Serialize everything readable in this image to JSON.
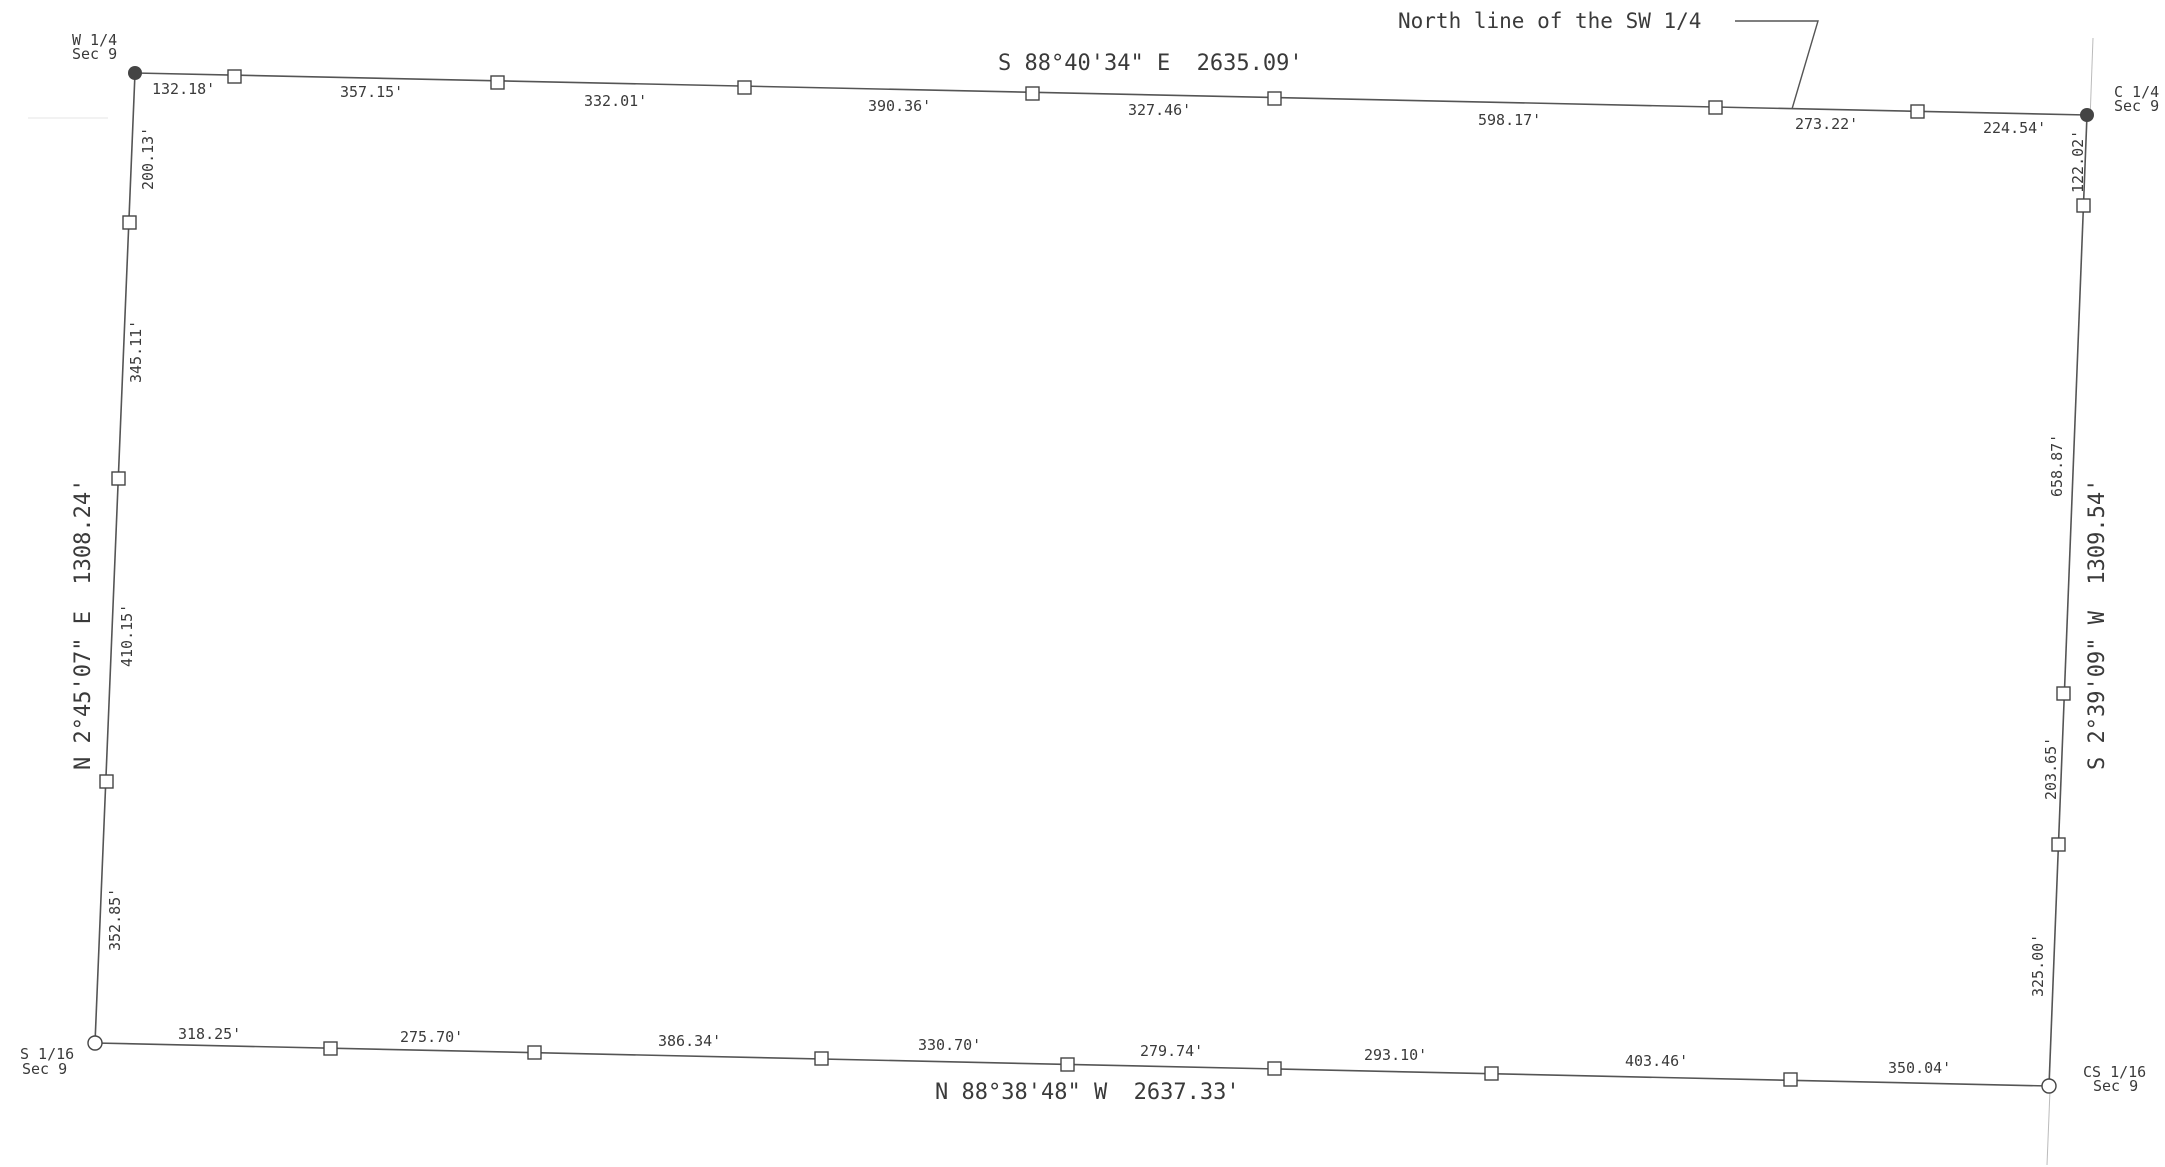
{
  "corners": {
    "nw": {
      "line1": "W 1/4",
      "line2": "Sec 9",
      "marker": "found-monument"
    },
    "ne": {
      "line1": "C 1/4",
      "line2": "Sec 9",
      "marker": "found-monument"
    },
    "sw": {
      "line1": "S 1/16",
      "line2": "Sec 9",
      "marker": "set-monument"
    },
    "se": {
      "line1": "CS 1/16",
      "line2": "Sec 9",
      "marker": "set-monument"
    }
  },
  "north": {
    "bearing": "S 88°40'34\" E  2635.09'",
    "note": "North line of the SW 1/4",
    "segments": [
      "132.18'",
      "357.15'",
      "332.01'",
      "390.36'",
      "327.46'",
      "598.17'",
      "273.22'",
      "224.54'"
    ]
  },
  "south": {
    "bearing": "N 88°38'48\" W  2637.33'",
    "segments": [
      "318.25'",
      "275.70'",
      "386.34'",
      "330.70'",
      "279.74'",
      "293.10'",
      "403.46'",
      "350.04'"
    ]
  },
  "west": {
    "bearing": "N 2°45'07\" E  1308.24'",
    "segments": [
      "200.13'",
      "345.11'",
      "410.15'",
      "352.85'"
    ]
  },
  "east": {
    "bearing": "S 2°39'09\" W  1309.54'",
    "segments": [
      "122.02'",
      "658.87'",
      "203.65'",
      "325.00'"
    ]
  },
  "colors": {
    "line": "#555555",
    "text": "#3a3a3a",
    "found_marker": "#444444"
  }
}
